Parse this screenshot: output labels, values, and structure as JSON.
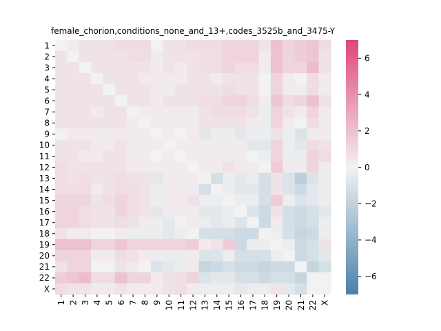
{
  "chart_data": {
    "type": "heatmap",
    "title": "female_chorion,conditions_none_and_13+,codes_3525b_and_3475-Y",
    "xlabel": "",
    "ylabel": "",
    "rows": [
      "1",
      "2",
      "3",
      "4",
      "5",
      "6",
      "7",
      "8",
      "9",
      "10",
      "11",
      "12",
      "13",
      "14",
      "15",
      "16",
      "17",
      "18",
      "19",
      "20",
      "21",
      "22",
      "X"
    ],
    "columns": [
      "1",
      "2",
      "3",
      "4",
      "5",
      "6",
      "7",
      "8",
      "9",
      "10",
      "11",
      "12",
      "13",
      "14",
      "15",
      "16",
      "17",
      "18",
      "19",
      "20",
      "21",
      "22",
      "X"
    ],
    "values": [
      [
        0.0,
        0.3,
        0.6,
        0.6,
        0.6,
        0.9,
        0.9,
        0.9,
        0.0,
        0.6,
        0.6,
        0.9,
        0.9,
        0.9,
        1.2,
        1.2,
        1.2,
        0.6,
        2.0,
        1.2,
        1.5,
        1.8,
        0.9
      ],
      [
        0.6,
        0.0,
        0.6,
        0.6,
        0.6,
        0.6,
        0.9,
        0.9,
        0.3,
        0.6,
        0.6,
        0.6,
        0.9,
        0.9,
        1.2,
        1.2,
        1.2,
        0.3,
        2.0,
        1.2,
        1.5,
        1.8,
        0.6
      ],
      [
        0.6,
        0.6,
        0.0,
        0.6,
        0.6,
        0.6,
        0.6,
        0.6,
        0.3,
        0.6,
        0.3,
        0.6,
        0.9,
        0.9,
        1.2,
        0.9,
        0.9,
        0.3,
        2.0,
        1.2,
        1.2,
        2.2,
        0.6
      ],
      [
        0.6,
        0.6,
        0.6,
        0.0,
        0.6,
        0.6,
        0.6,
        0.3,
        0.3,
        0.3,
        0.3,
        0.6,
        0.6,
        0.3,
        0.6,
        0.6,
        0.6,
        0.0,
        1.2,
        0.3,
        0.0,
        0.9,
        0.3
      ],
      [
        0.6,
        0.6,
        0.6,
        0.6,
        0.0,
        0.6,
        0.6,
        0.6,
        0.3,
        0.3,
        0.6,
        0.6,
        0.6,
        0.6,
        0.9,
        0.6,
        0.6,
        0.0,
        1.2,
        0.3,
        0.3,
        0.9,
        0.3
      ],
      [
        0.6,
        0.6,
        0.6,
        0.6,
        0.6,
        0.0,
        0.6,
        0.6,
        0.3,
        0.6,
        0.6,
        0.6,
        0.9,
        0.9,
        1.2,
        1.2,
        0.9,
        0.3,
        1.8,
        0.9,
        1.2,
        2.0,
        0.6
      ],
      [
        0.6,
        0.6,
        0.6,
        0.3,
        0.6,
        0.6,
        0.0,
        0.3,
        0.3,
        0.3,
        0.3,
        0.3,
        0.6,
        0.9,
        0.9,
        0.9,
        0.6,
        -0.3,
        1.2,
        0.6,
        0.3,
        1.2,
        0.3
      ],
      [
        0.6,
        0.6,
        0.6,
        0.6,
        0.6,
        0.6,
        0.3,
        0.0,
        0.3,
        0.3,
        0.3,
        0.3,
        0.6,
        0.6,
        0.6,
        0.6,
        0.3,
        -0.3,
        1.2,
        0.3,
        0.0,
        0.9,
        0.3
      ],
      [
        0.0,
        0.3,
        0.3,
        0.3,
        0.3,
        0.3,
        0.3,
        0.3,
        0.0,
        0.3,
        0.0,
        0.3,
        -0.6,
        -0.3,
        -0.3,
        -0.6,
        -0.3,
        -0.3,
        0.6,
        -0.3,
        -0.9,
        0.3,
        0.3
      ],
      [
        0.6,
        0.6,
        0.6,
        0.3,
        0.3,
        0.6,
        0.3,
        0.3,
        0.3,
        0.0,
        0.3,
        0.3,
        0.3,
        0.3,
        0.3,
        0.3,
        -0.6,
        -0.6,
        1.2,
        -0.3,
        -0.6,
        0.9,
        0.6
      ],
      [
        0.6,
        0.6,
        0.3,
        0.3,
        0.6,
        0.6,
        0.3,
        0.3,
        0.0,
        0.3,
        0.0,
        0.3,
        0.3,
        0.3,
        0.3,
        0.3,
        0.0,
        -0.3,
        1.2,
        -0.3,
        -0.3,
        1.2,
        0.9
      ],
      [
        0.9,
        0.6,
        0.6,
        0.6,
        0.6,
        0.6,
        0.3,
        0.3,
        0.3,
        0.3,
        0.3,
        0.0,
        0.3,
        0.3,
        0.6,
        0.3,
        0.3,
        0.0,
        1.5,
        0.3,
        0.3,
        1.2,
        0.3
      ],
      [
        0.9,
        0.6,
        0.9,
        0.6,
        0.6,
        0.9,
        0.6,
        0.6,
        -0.6,
        0.3,
        0.3,
        0.3,
        0.0,
        -1.2,
        -0.3,
        -0.6,
        -0.3,
        -1.2,
        0.6,
        -0.9,
        -2.2,
        -0.9,
        -0.3
      ],
      [
        0.9,
        0.9,
        0.9,
        0.3,
        0.6,
        0.9,
        0.9,
        0.6,
        -0.3,
        0.3,
        0.3,
        0.3,
        -1.2,
        0.0,
        -0.3,
        -0.6,
        -0.6,
        -1.2,
        0.6,
        -0.9,
        -1.5,
        -0.6,
        -0.3
      ],
      [
        1.2,
        1.2,
        1.2,
        0.6,
        0.9,
        1.2,
        0.9,
        0.6,
        -0.3,
        0.3,
        0.3,
        0.6,
        -0.3,
        -0.3,
        0.0,
        -0.3,
        -0.3,
        -1.2,
        1.5,
        -0.3,
        -0.9,
        -0.6,
        -0.3
      ],
      [
        1.2,
        1.2,
        0.9,
        0.6,
        0.6,
        1.2,
        0.9,
        0.6,
        -0.6,
        0.3,
        0.3,
        0.3,
        -0.6,
        -0.6,
        -0.3,
        0.0,
        -0.9,
        -1.5,
        0.6,
        -1.2,
        -1.5,
        -1.2,
        -0.6
      ],
      [
        1.2,
        1.2,
        0.9,
        0.6,
        0.6,
        0.9,
        0.6,
        0.3,
        -0.3,
        -0.6,
        0.0,
        0.3,
        -0.3,
        -0.6,
        -0.3,
        -0.9,
        0.0,
        -1.5,
        0.3,
        -1.2,
        -1.5,
        -1.2,
        -0.3
      ],
      [
        0.6,
        0.3,
        0.3,
        0.0,
        0.0,
        0.3,
        -0.3,
        -0.3,
        -0.3,
        -0.6,
        -0.3,
        0.0,
        -1.2,
        -1.2,
        -1.2,
        -1.5,
        -1.5,
        0.0,
        -0.3,
        -1.2,
        -1.8,
        -1.5,
        -0.3
      ],
      [
        2.0,
        2.0,
        2.0,
        1.2,
        1.2,
        1.8,
        1.2,
        1.2,
        1.2,
        1.2,
        1.2,
        1.5,
        0.3,
        0.6,
        1.5,
        -1.5,
        -0.3,
        -0.3,
        0.0,
        -0.3,
        -1.5,
        -1.2,
        0.6
      ],
      [
        1.2,
        1.2,
        1.2,
        0.3,
        0.3,
        0.9,
        0.6,
        0.3,
        -0.3,
        -0.3,
        -0.3,
        0.3,
        -0.9,
        -0.9,
        -0.3,
        -1.2,
        -1.2,
        -1.2,
        -0.3,
        0.0,
        -1.5,
        -1.2,
        -0.6
      ],
      [
        0.6,
        1.2,
        1.2,
        0.0,
        0.0,
        0.6,
        0.3,
        0.0,
        -0.9,
        -0.6,
        -0.3,
        0.3,
        -1.8,
        -1.5,
        -1.2,
        -1.5,
        -1.5,
        -1.8,
        -1.5,
        -1.5,
        0.0,
        -1.8,
        -1.2
      ],
      [
        1.5,
        1.8,
        2.2,
        0.9,
        0.9,
        2.0,
        1.2,
        1.2,
        0.3,
        0.6,
        0.9,
        1.2,
        -0.9,
        -0.6,
        -0.6,
        -1.2,
        -1.2,
        -1.5,
        -1.2,
        -1.2,
        -1.8,
        0.0,
        0.0
      ],
      [
        0.9,
        0.6,
        0.6,
        0.3,
        0.3,
        0.6,
        0.3,
        0.3,
        0.3,
        0.6,
        0.9,
        0.3,
        -0.3,
        -0.3,
        -0.3,
        -0.6,
        -0.3,
        -0.3,
        0.6,
        -0.6,
        -1.2,
        0.0,
        0.0
      ]
    ],
    "vmin": -7,
    "vmax": 7,
    "colorbar_ticks": [
      -6,
      -4,
      -2,
      0,
      2,
      4,
      6
    ],
    "colormap": {
      "low": "#4a81aa",
      "mid": "#f2f2f2",
      "high": "#e0457b"
    },
    "grid": false,
    "legend": "colorbar-right"
  }
}
